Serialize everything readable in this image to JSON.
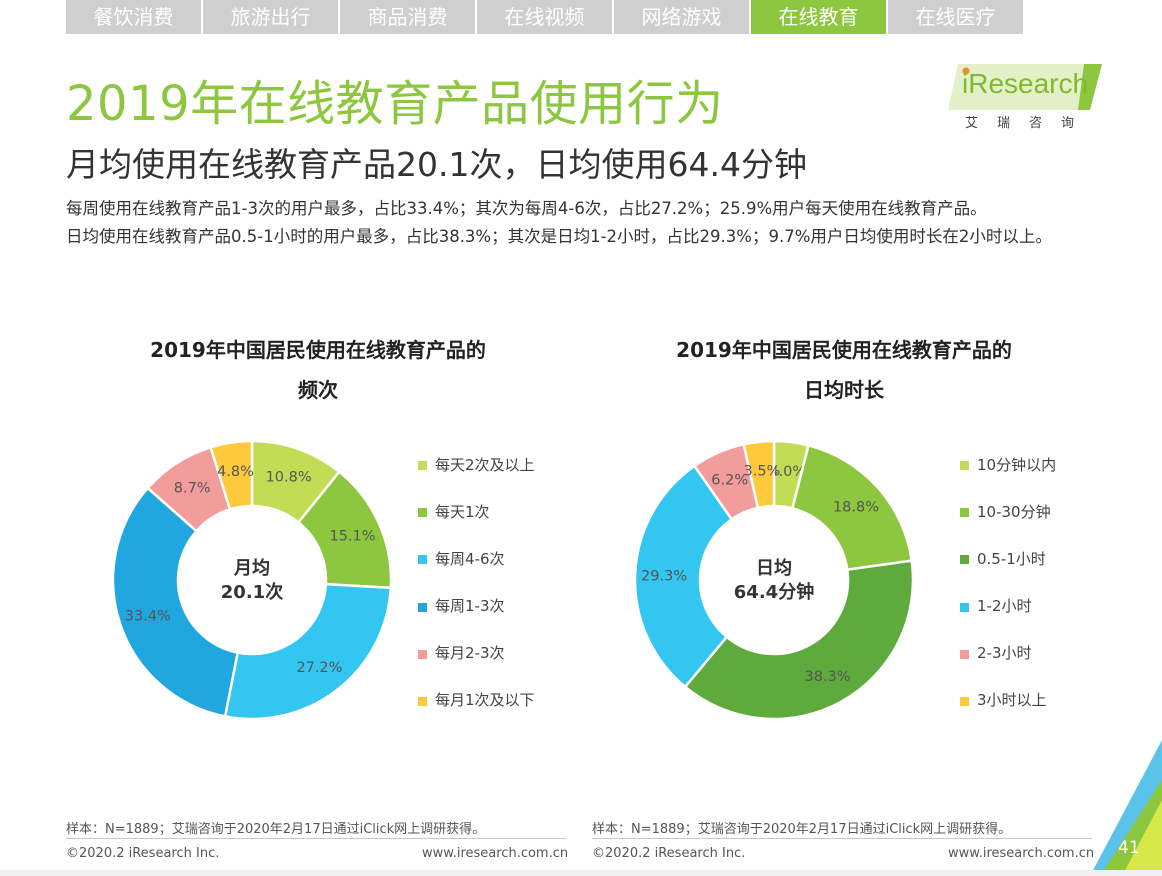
{
  "tabs": [
    {
      "label": "餐饮消费",
      "active": false
    },
    {
      "label": "旅游出行",
      "active": false
    },
    {
      "label": "商品消费",
      "active": false
    },
    {
      "label": "在线视频",
      "active": false
    },
    {
      "label": "网络游戏",
      "active": false
    },
    {
      "label": "在线教育",
      "active": true
    },
    {
      "label": "在线医疗",
      "active": false
    }
  ],
  "header": {
    "title": "2019年在线教育产品使用行为",
    "subtitle": "月均使用在线教育产品20.1次，日均使用64.4分钟",
    "summary_line1": "每周使用在线教育产品1-3次的用户最多，占比33.4%；其次为每周4-6次，占比27.2%；25.9%用户每天使用在线教育产品。",
    "summary_line2": "日均使用在线教育产品0.5-1小时的用户最多，占比38.3%；其次是日均1-2小时，占比29.3%；9.7%用户日均使用时长在2小时以上。"
  },
  "logo": {
    "word": "iResearch",
    "chinese": "艾瑞咨询",
    "accent_color": "#8dc63f"
  },
  "chart_data": [
    {
      "type": "pie",
      "title_line1": "2019年中国居民使用在线教育产品的",
      "title_line2": "频次",
      "center_line1": "月均",
      "center_line2": "20.1次",
      "categories": [
        "每天2次及以上",
        "每天1次",
        "每周4-6次",
        "每周1-3次",
        "每月2-3次",
        "每月1次及以下"
      ],
      "values": [
        10.8,
        15.1,
        27.2,
        33.4,
        8.7,
        4.8
      ],
      "labels": [
        "10.8%",
        "15.1%",
        "27.2%",
        "33.4%",
        "8.7%",
        "4.8%"
      ],
      "colors": [
        "#c3dc55",
        "#8dc63f",
        "#33c6f0",
        "#20a7e0",
        "#f29c9c",
        "#ffc93c"
      ],
      "legend_position": "right"
    },
    {
      "type": "pie",
      "title_line1": "2019年中国居民使用在线教育产品的",
      "title_line2": "日均时长",
      "center_line1": "日均",
      "center_line2": "64.4分钟",
      "categories": [
        "10分钟以内",
        "10-30分钟",
        "0.5-1小时",
        "1-2小时",
        "2-3小时",
        "3小时以上"
      ],
      "values": [
        4.0,
        18.8,
        38.3,
        29.3,
        6.2,
        3.5
      ],
      "labels": [
        "4.0%",
        "18.8%",
        "38.3%",
        "29.3%",
        "6.2%",
        "3.5%"
      ],
      "colors": [
        "#c3dc55",
        "#8dc63f",
        "#5eaa3c",
        "#33c6f0",
        "#f29c9c",
        "#ffc93c"
      ],
      "legend_position": "right"
    }
  ],
  "footer": {
    "note_left": "样本：N=1889；艾瑞咨询于2020年2月17日通过iClick网上调研获得。",
    "note_right": "样本：N=1889；艾瑞咨询于2020年2月17日通过iClick网上调研获得。",
    "copyright_left": "©2020.2 iResearch Inc.",
    "copyright_right": "©2020.2 iResearch Inc.",
    "website_left": "www.iresearch.com.cn",
    "website_right": "www.iresearch.com.cn",
    "page_number": "41"
  }
}
